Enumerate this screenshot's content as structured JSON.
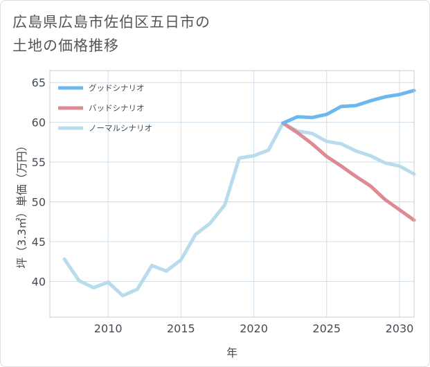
{
  "title_lines": [
    "広島県広島市佐伯区五日市の",
    "土地の価格推移"
  ],
  "chart_data": {
    "type": "line",
    "xlabel": "年",
    "ylabel": "坪（3.3㎡）単価（万円）",
    "xlim": [
      2006,
      2031
    ],
    "ylim": [
      35.5,
      66.5
    ],
    "x_ticks": [
      2010,
      2015,
      2020,
      2025,
      2030
    ],
    "y_ticks": [
      40,
      45,
      50,
      55,
      60,
      65
    ],
    "grid": true,
    "legend_position": "top-left",
    "series": [
      {
        "name": "グッドシナリオ",
        "color": "#6cb8ee",
        "x": [
          2022,
          2023,
          2024,
          2025,
          2026,
          2027,
          2028,
          2029,
          2030,
          2031
        ],
        "values": [
          59.9,
          60.7,
          60.6,
          61.0,
          62.0,
          62.1,
          62.7,
          63.2,
          63.5,
          64.0
        ]
      },
      {
        "name": "バッドシナリオ",
        "color": "#dd8a93",
        "x": [
          2022,
          2023,
          2024,
          2025,
          2026,
          2027,
          2028,
          2029,
          2030,
          2031
        ],
        "values": [
          59.9,
          58.7,
          57.3,
          55.7,
          54.5,
          53.2,
          52.0,
          50.3,
          49.0,
          47.7
        ]
      },
      {
        "name": "ノーマルシナリオ",
        "color": "#b8dcec",
        "x": [
          2007,
          2008,
          2009,
          2010,
          2011,
          2012,
          2013,
          2014,
          2015,
          2016,
          2017,
          2018,
          2019,
          2020,
          2021,
          2022,
          2023,
          2024,
          2025,
          2026,
          2027,
          2028,
          2029,
          2030,
          2031
        ],
        "values": [
          42.8,
          40.1,
          39.2,
          39.9,
          38.2,
          39.0,
          42.0,
          41.3,
          42.7,
          45.9,
          47.3,
          49.6,
          55.5,
          55.8,
          56.5,
          59.9,
          58.9,
          58.6,
          57.6,
          57.3,
          56.4,
          55.8,
          54.9,
          54.5,
          53.5
        ]
      }
    ]
  }
}
